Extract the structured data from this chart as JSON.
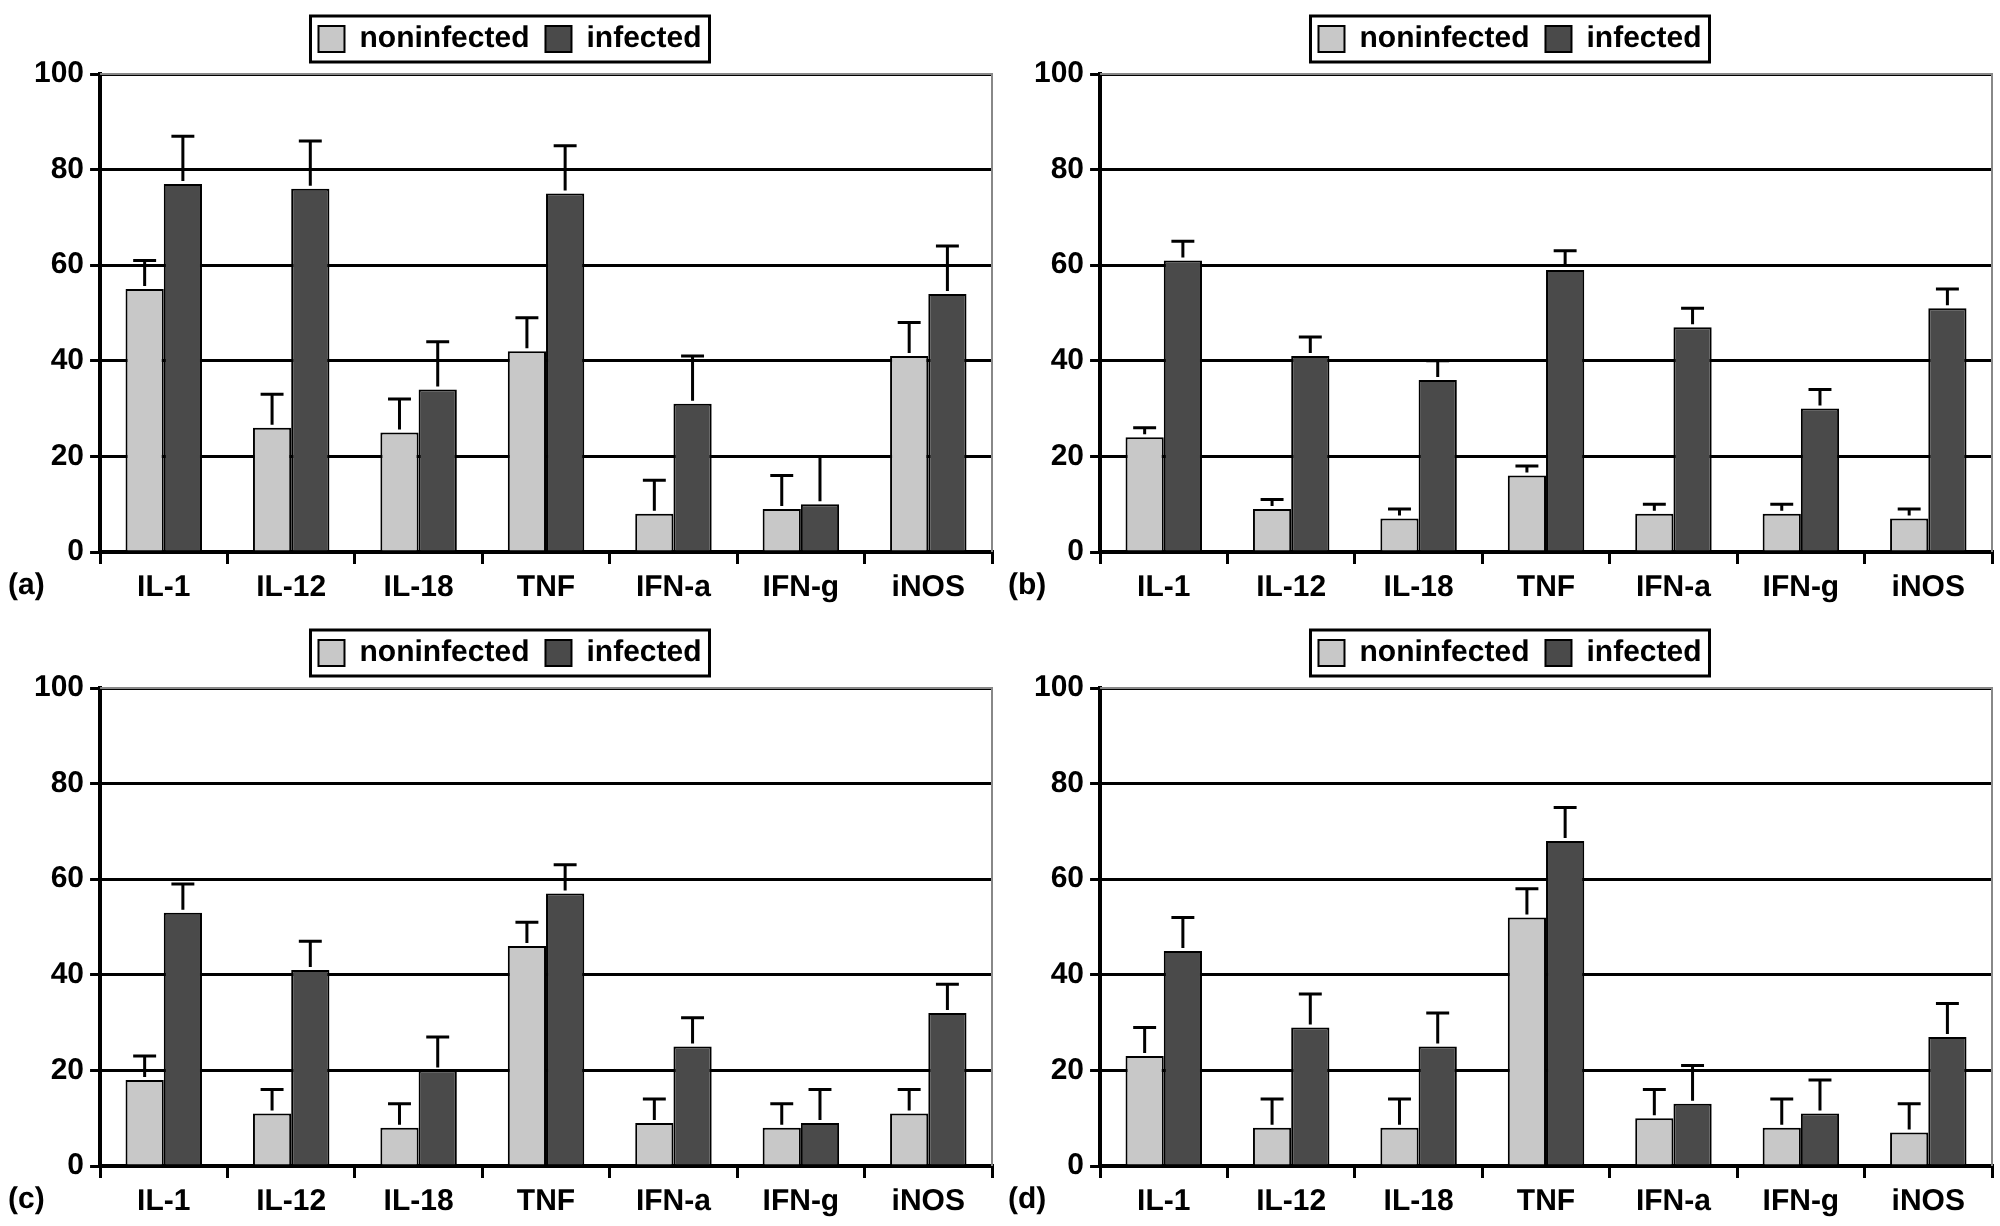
{
  "chart_data": [
    {
      "type": "bar",
      "categories": [
        "IL-1",
        "IL-12",
        "IL-18",
        "TNF",
        "IFN-a",
        "IFN-g",
        "iNOS"
      ],
      "ylim": [
        0,
        100
      ],
      "yticks": [
        0,
        20,
        40,
        60,
        80,
        100
      ],
      "grid": "y",
      "legend": "top",
      "annotations": [
        "(a)"
      ],
      "series": [
        {
          "name": "noninfected",
          "color": "#c8c8c8",
          "values": [
            55,
            26,
            25,
            42,
            8,
            9,
            41
          ],
          "errors": [
            [
              55,
              61
            ],
            [
              26,
              33
            ],
            [
              25,
              32
            ],
            [
              42,
              49
            ],
            [
              8,
              15
            ],
            [
              9,
              16
            ],
            [
              41,
              48
            ]
          ]
        },
        {
          "name": "infected",
          "color": "#4a4a4a",
          "values": [
            77,
            76,
            34,
            75,
            31,
            10,
            54
          ],
          "errors": [
            [
              77,
              87
            ],
            [
              76,
              86
            ],
            [
              34,
              44
            ],
            [
              75,
              85
            ],
            [
              31,
              41
            ],
            [
              10,
              20
            ],
            [
              54,
              64
            ]
          ]
        }
      ]
    },
    {
      "type": "bar",
      "categories": [
        "IL-1",
        "IL-12",
        "IL-18",
        "TNF",
        "IFN-a",
        "IFN-g",
        "iNOS"
      ],
      "ylim": [
        0,
        100
      ],
      "yticks": [
        0,
        20,
        40,
        60,
        80,
        100
      ],
      "grid": "y",
      "legend": "top",
      "annotations": [
        "(b)"
      ],
      "series": [
        {
          "name": "noninfected",
          "color": "#c8c8c8",
          "values": [
            24,
            9,
            7,
            16,
            8,
            8,
            7
          ],
          "errors": [
            [
              24,
              26
            ],
            [
              9,
              11
            ],
            [
              7,
              9
            ],
            [
              16,
              18
            ],
            [
              8,
              10
            ],
            [
              8,
              10
            ],
            [
              7,
              9
            ]
          ]
        },
        {
          "name": "infected",
          "color": "#4a4a4a",
          "values": [
            61,
            41,
            36,
            59,
            47,
            30,
            51
          ],
          "errors": [
            [
              61,
              65
            ],
            [
              41,
              45
            ],
            [
              36,
              40
            ],
            [
              59,
              63
            ],
            [
              47,
              51
            ],
            [
              30,
              34
            ],
            [
              51,
              55
            ]
          ]
        }
      ]
    },
    {
      "type": "bar",
      "categories": [
        "IL-1",
        "IL-12",
        "IL-18",
        "TNF",
        "IFN-a",
        "IFN-g",
        "iNOS"
      ],
      "ylim": [
        0,
        100
      ],
      "yticks": [
        0,
        20,
        40,
        60,
        80,
        100
      ],
      "grid": "y",
      "legend": "top",
      "annotations": [
        "(c)"
      ],
      "series": [
        {
          "name": "noninfected",
          "color": "#c8c8c8",
          "values": [
            18,
            11,
            8,
            46,
            9,
            8,
            11
          ],
          "errors": [
            [
              18,
              23
            ],
            [
              11,
              16
            ],
            [
              8,
              13
            ],
            [
              46,
              51
            ],
            [
              9,
              14
            ],
            [
              8,
              13
            ],
            [
              11,
              16
            ]
          ]
        },
        {
          "name": "infected",
          "color": "#4a4a4a",
          "values": [
            53,
            41,
            20,
            57,
            25,
            9,
            32
          ],
          "errors": [
            [
              53,
              59
            ],
            [
              41,
              47
            ],
            [
              20,
              27
            ],
            [
              57,
              63
            ],
            [
              25,
              31
            ],
            [
              9,
              16
            ],
            [
              32,
              38
            ]
          ]
        }
      ]
    },
    {
      "type": "bar",
      "categories": [
        "IL-1",
        "IL-12",
        "IL-18",
        "TNF",
        "IFN-a",
        "IFN-g",
        "iNOS"
      ],
      "ylim": [
        0,
        100
      ],
      "yticks": [
        0,
        20,
        40,
        60,
        80,
        100
      ],
      "grid": "y",
      "legend": "top",
      "annotations": [
        "(d)"
      ],
      "series": [
        {
          "name": "noninfected",
          "color": "#c8c8c8",
          "values": [
            23,
            8,
            8,
            52,
            10,
            8,
            7
          ],
          "errors": [
            [
              23,
              29
            ],
            [
              8,
              14
            ],
            [
              8,
              14
            ],
            [
              52,
              58
            ],
            [
              10,
              16
            ],
            [
              8,
              14
            ],
            [
              7,
              13
            ]
          ]
        },
        {
          "name": "infected",
          "color": "#4a4a4a",
          "values": [
            45,
            29,
            25,
            68,
            13,
            11,
            27
          ],
          "errors": [
            [
              45,
              52
            ],
            [
              29,
              36
            ],
            [
              25,
              32
            ],
            [
              68,
              75
            ],
            [
              13,
              21
            ],
            [
              11,
              18
            ],
            [
              27,
              34
            ]
          ]
        }
      ]
    }
  ]
}
